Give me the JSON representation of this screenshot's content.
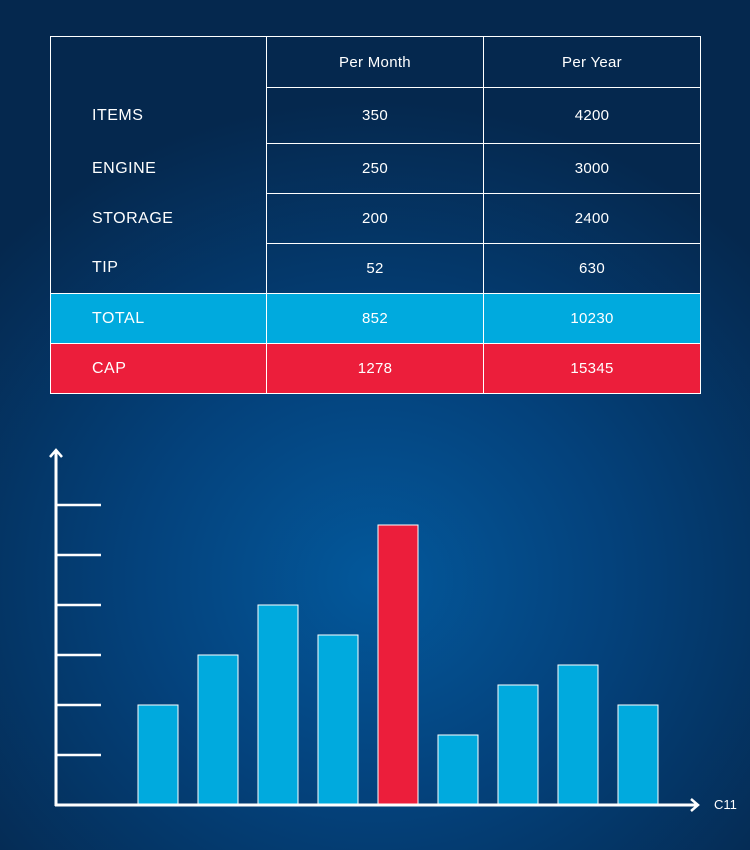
{
  "table": {
    "columns": [
      "",
      "Per Month",
      "Per Year"
    ],
    "rows": [
      {
        "label": "ITEMS",
        "per_month": "350",
        "per_year": "4200"
      },
      {
        "label": "ENGINE",
        "per_month": "250",
        "per_year": "3000"
      },
      {
        "label": "STORAGE",
        "per_month": "200",
        "per_year": "2400"
      },
      {
        "label": "TIP",
        "per_month": "52",
        "per_year": "630"
      },
      {
        "label": "TOTAL",
        "per_month": "852",
        "per_year": "10230"
      },
      {
        "label": "CAP",
        "per_month": "1278",
        "per_year": "15345"
      }
    ]
  },
  "colors": {
    "background": "#04427c",
    "bar": "#00aade",
    "highlight": "#ec1e3b",
    "line": "#ffffff"
  },
  "chart_data": {
    "type": "bar",
    "title": "",
    "xlabel": "C11",
    "ylabel": "",
    "ytick_count": 6,
    "ylim": [
      0,
      6
    ],
    "grid": false,
    "values": [
      2,
      3,
      4,
      3.4,
      5.6,
      1.4,
      2.4,
      2.8,
      2
    ],
    "highlight_index": 4
  }
}
